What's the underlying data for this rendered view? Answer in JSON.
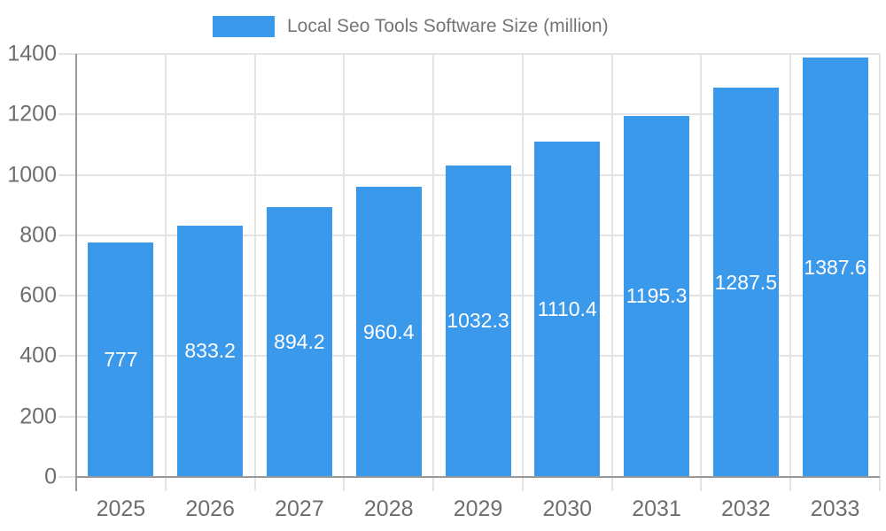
{
  "legend": {
    "label": "Local Seo Tools Software Size (million)"
  },
  "chart_data": {
    "type": "bar",
    "title": "Local Seo Tools Software Size (million)",
    "categories": [
      "2025",
      "2026",
      "2027",
      "2028",
      "2029",
      "2030",
      "2031",
      "2032",
      "2033"
    ],
    "values": [
      777,
      833.2,
      894.2,
      960.4,
      1032.3,
      1110.4,
      1195.3,
      1287.5,
      1387.6
    ],
    "value_labels": [
      "777",
      "833.2",
      "894.2",
      "960.4",
      "1032.3",
      "1110.4",
      "1195.3",
      "1287.5",
      "1387.6"
    ],
    "xlabel": "",
    "ylabel": "",
    "ylim": [
      0,
      1400
    ],
    "ytick_step": 200,
    "ytick_labels": [
      "0",
      "200",
      "400",
      "600",
      "800",
      "1000",
      "1200",
      "1400"
    ],
    "grid": true,
    "legend_position": "top",
    "colors": {
      "bar": "#3B99EC",
      "value_label": "#FFFFFF",
      "axis_text": "#6E6E6E",
      "legend_text": "#757575",
      "gridline": "#E4E4E4",
      "axis_line": "#999999",
      "background": "#FFFFFF"
    }
  }
}
